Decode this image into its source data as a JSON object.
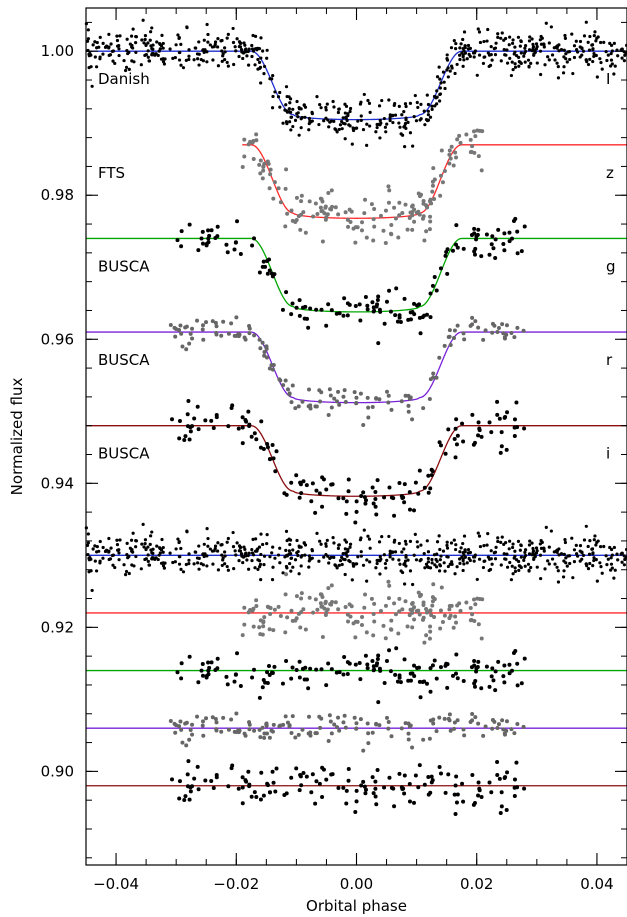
{
  "chart_data": {
    "type": "scatter",
    "xlabel": "Orbital phase",
    "ylabel": "Normalized flux",
    "xlim": [
      -0.045,
      0.045
    ],
    "ylim": [
      0.887,
      1.006
    ],
    "x_ticks": [
      -0.04,
      -0.02,
      0.0,
      0.02,
      0.04
    ],
    "x_tick_labels": [
      "−0.04",
      "−0.02",
      "0.00",
      "0.02",
      "0.04"
    ],
    "y_ticks": [
      0.9,
      0.92,
      0.94,
      0.96,
      0.98,
      1.0
    ],
    "y_tick_labels": [
      "0.90",
      "0.92",
      "0.94",
      "0.96",
      "0.98",
      "1.00"
    ],
    "grid": false,
    "transit": {
      "total_half_width": 0.0175,
      "full_half_width": 0.0105,
      "limb_darkening": 0.6
    },
    "series": [
      {
        "label": "Danish",
        "band": "I",
        "baseline": 1.0,
        "depth": 0.0095,
        "x_range": [
          -0.045,
          0.045
        ],
        "n_points": 650,
        "scatter": 0.0014,
        "line_color": "#1f2fd0",
        "point_color": "#000000",
        "residual_offset": 0.93
      },
      {
        "label": "FTS",
        "band": "z",
        "baseline": 0.987,
        "depth": 0.0102,
        "x_range": [
          -0.019,
          0.021
        ],
        "n_points": 170,
        "scatter": 0.0017,
        "line_color": "#ff2a2a",
        "point_color": "#777777",
        "residual_offset": 0.922
      },
      {
        "label": "BUSCA",
        "band": "g",
        "baseline": 0.974,
        "depth": 0.0102,
        "x_range": [
          -0.031,
          0.028
        ],
        "n_points": 150,
        "scatter": 0.0013,
        "line_color": "#00a800",
        "point_color": "#000000",
        "residual_offset": 0.914
      },
      {
        "label": "BUSCA",
        "band": "r",
        "baseline": 0.961,
        "depth": 0.0098,
        "x_range": [
          -0.031,
          0.028
        ],
        "n_points": 150,
        "scatter": 0.0011,
        "line_color": "#7a22d8",
        "point_color": "#666666",
        "residual_offset": 0.906
      },
      {
        "label": "BUSCA",
        "band": "i",
        "baseline": 0.948,
        "depth": 0.0098,
        "x_range": [
          -0.031,
          0.028
        ],
        "n_points": 150,
        "scatter": 0.0015,
        "line_color": "#8a0d10",
        "point_color": "#000000",
        "residual_offset": 0.898
      }
    ]
  },
  "colors": {
    "axis": "#000000",
    "background": "#ffffff"
  }
}
